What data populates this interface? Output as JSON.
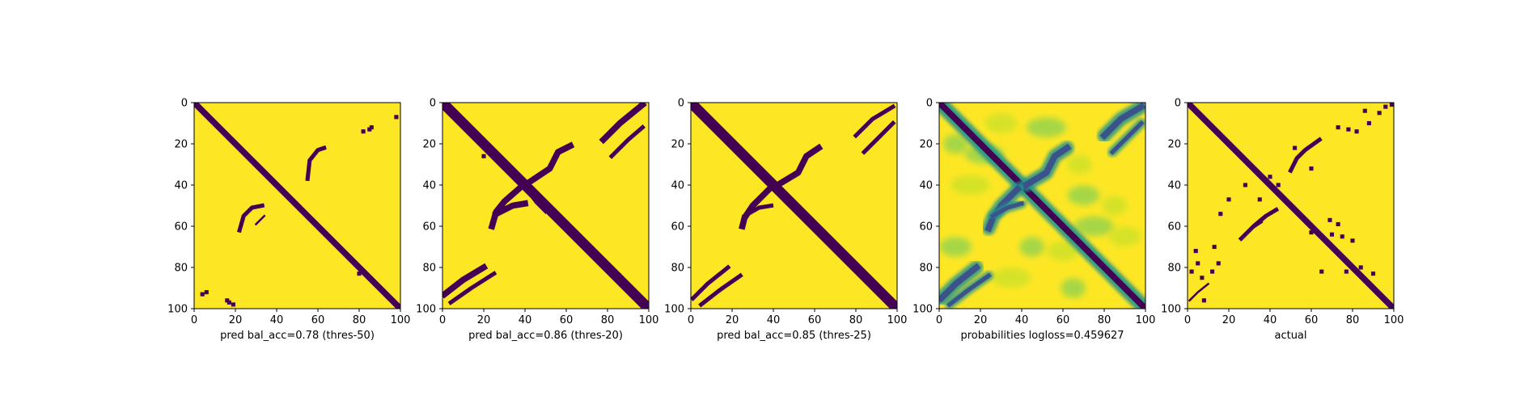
{
  "colors": {
    "background": "#fde725",
    "contact": "#440154",
    "mid_teal": "#21918c",
    "mid_blue": "#3b528b",
    "light_green": "#b5de2b",
    "mid_green": "#5ec962"
  },
  "chart_data": [
    {
      "type": "heatmap",
      "title": "pred bal_acc=0.78 (thres-50)",
      "xlim": [
        0,
        100
      ],
      "ylim": [
        100,
        0
      ],
      "xticks": [
        0,
        20,
        40,
        60,
        80,
        100
      ],
      "yticks": [
        0,
        20,
        40,
        60,
        80,
        100
      ],
      "grid": false,
      "colormap": "viridis",
      "value_kind": "binary",
      "features": {
        "diagonal_width": 3,
        "arcs": [
          {
            "points": [
              [
                55,
                37
              ],
              [
                56,
                28
              ],
              [
                60,
                23
              ],
              [
                63,
                22
              ]
            ],
            "width": 2
          },
          {
            "points": [
              [
                22,
                62
              ],
              [
                24,
                55
              ],
              [
                28,
                51
              ],
              [
                33,
                50
              ]
            ],
            "width": 2
          },
          {
            "points": [
              [
                30,
                59
              ],
              [
                34,
                55
              ]
            ],
            "width": 1
          }
        ],
        "blobs": [
          [
            82,
            14
          ],
          [
            85,
            13
          ],
          [
            98,
            7
          ],
          [
            86,
            12
          ],
          [
            80,
            83
          ],
          [
            82,
            82
          ],
          [
            17,
            97
          ],
          [
            16,
            96
          ],
          [
            19,
            98
          ],
          [
            88,
            88
          ],
          [
            4,
            93
          ],
          [
            6,
            92
          ]
        ],
        "blob_size": 2
      }
    },
    {
      "type": "heatmap",
      "title": "pred bal_acc=0.86 (thres-20)",
      "xlim": [
        0,
        100
      ],
      "ylim": [
        100,
        0
      ],
      "xticks": [
        0,
        20,
        40,
        60,
        80,
        100
      ],
      "yticks": [
        0,
        20,
        40,
        60,
        80,
        100
      ],
      "grid": false,
      "colormap": "viridis",
      "value_kind": "binary",
      "features": {
        "diagonal_width": 5,
        "arcs": [
          {
            "points": [
              [
                40,
                40
              ],
              [
                52,
                32
              ],
              [
                56,
                24
              ],
              [
                62,
                21
              ]
            ],
            "width": 3
          },
          {
            "points": [
              [
                38,
                41
              ],
              [
                30,
                48
              ],
              [
                26,
                53
              ],
              [
                24,
                60
              ]
            ],
            "width": 3
          },
          {
            "points": [
              [
                26,
                54
              ],
              [
                34,
                50
              ],
              [
                40,
                49
              ]
            ],
            "width": 3
          },
          {
            "points": [
              [
                40,
                40
              ],
              [
                46,
                48
              ],
              [
                50,
                52
              ]
            ],
            "width": 3
          },
          {
            "points": [
              [
                78,
                18
              ],
              [
                86,
                10
              ],
              [
                97,
                1
              ]
            ],
            "width": 3
          },
          {
            "points": [
              [
                82,
                26
              ],
              [
                90,
                18
              ],
              [
                97,
                12
              ]
            ],
            "width": 2
          },
          {
            "points": [
              [
                1,
                93
              ],
              [
                10,
                86
              ],
              [
                20,
                80
              ]
            ],
            "width": 3
          },
          {
            "points": [
              [
                4,
                97
              ],
              [
                14,
                90
              ],
              [
                25,
                83
              ]
            ],
            "width": 2
          },
          {
            "points": [
              [
                86,
                84
              ],
              [
                94,
                94
              ],
              [
                99,
                99
              ]
            ],
            "width": 2
          }
        ],
        "blobs": [
          [
            20,
            26
          ],
          [
            60,
            60
          ],
          [
            79,
            80
          ]
        ],
        "blob_size": 2
      }
    },
    {
      "type": "heatmap",
      "title": "pred bal_acc=0.85 (thres-25)",
      "xlim": [
        0,
        100
      ],
      "ylim": [
        100,
        0
      ],
      "xticks": [
        0,
        20,
        40,
        60,
        80,
        100
      ],
      "yticks": [
        0,
        20,
        40,
        60,
        80,
        100
      ],
      "grid": false,
      "colormap": "viridis",
      "value_kind": "binary",
      "features": {
        "diagonal_width": 5,
        "arcs": [
          {
            "points": [
              [
                42,
                40
              ],
              [
                52,
                34
              ],
              [
                56,
                26
              ],
              [
                62,
                22
              ]
            ],
            "width": 3
          },
          {
            "points": [
              [
                38,
                42
              ],
              [
                30,
                50
              ],
              [
                26,
                56
              ],
              [
                25,
                60
              ]
            ],
            "width": 3
          },
          {
            "points": [
              [
                26,
                55
              ],
              [
                33,
                51
              ],
              [
                39,
                50
              ]
            ],
            "width": 2
          },
          {
            "points": [
              [
                80,
                16
              ],
              [
                88,
                8
              ],
              [
                98,
                2
              ]
            ],
            "width": 2
          },
          {
            "points": [
              [
                84,
                24
              ],
              [
                92,
                16
              ],
              [
                98,
                10
              ]
            ],
            "width": 2
          },
          {
            "points": [
              [
                1,
                95
              ],
              [
                8,
                88
              ],
              [
                18,
                80
              ]
            ],
            "width": 2
          },
          {
            "points": [
              [
                5,
                98
              ],
              [
                14,
                91
              ],
              [
                24,
                84
              ]
            ],
            "width": 2
          }
        ],
        "blobs": [
          [
            60,
            60
          ],
          [
            80,
            80
          ]
        ],
        "blob_size": 2
      }
    },
    {
      "type": "heatmap",
      "title": "probabilities logloss=0.459627",
      "xlim": [
        0,
        100
      ],
      "ylim": [
        100,
        0
      ],
      "xticks": [
        0,
        20,
        40,
        60,
        80,
        100
      ],
      "yticks": [
        0,
        20,
        40,
        60,
        80,
        100
      ],
      "grid": false,
      "colormap": "viridis",
      "value_kind": "continuous",
      "features": {
        "diagonal_width": 3,
        "arcs": [
          {
            "points": [
              [
                42,
                40
              ],
              [
                52,
                34
              ],
              [
                56,
                26
              ],
              [
                62,
                22
              ]
            ],
            "width": 3
          },
          {
            "points": [
              [
                38,
                42
              ],
              [
                30,
                50
              ],
              [
                26,
                56
              ],
              [
                24,
                61
              ]
            ],
            "width": 3
          },
          {
            "points": [
              [
                26,
                55
              ],
              [
                33,
                51
              ],
              [
                40,
                49
              ]
            ],
            "width": 2
          },
          {
            "points": [
              [
                80,
                16
              ],
              [
                88,
                8
              ],
              [
                98,
                2
              ]
            ],
            "width": 3
          },
          {
            "points": [
              [
                84,
                24
              ],
              [
                92,
                16
              ],
              [
                98,
                10
              ]
            ],
            "width": 2
          },
          {
            "points": [
              [
                1,
                95
              ],
              [
                8,
                88
              ],
              [
                18,
                80
              ]
            ],
            "width": 3
          },
          {
            "points": [
              [
                5,
                98
              ],
              [
                14,
                91
              ],
              [
                24,
                84
              ]
            ],
            "width": 2
          }
        ],
        "blobs": [
          [
            8,
            20
          ],
          [
            30,
            10
          ],
          [
            52,
            12
          ],
          [
            68,
            30
          ],
          [
            70,
            45
          ],
          [
            15,
            40
          ],
          [
            45,
            70
          ],
          [
            60,
            72
          ],
          [
            75,
            60
          ],
          [
            85,
            50
          ],
          [
            8,
            70
          ],
          [
            35,
            85
          ],
          [
            65,
            90
          ],
          [
            90,
            65
          ],
          [
            22,
            25
          ]
        ],
        "blob_size": 6
      }
    },
    {
      "type": "heatmap",
      "title": "actual",
      "xlim": [
        0,
        100
      ],
      "ylim": [
        100,
        0
      ],
      "xticks": [
        0,
        20,
        40,
        60,
        80,
        100
      ],
      "yticks": [
        0,
        20,
        40,
        60,
        80,
        100
      ],
      "grid": false,
      "colormap": "viridis",
      "value_kind": "binary",
      "features": {
        "diagonal_width": 3,
        "arcs": [
          {
            "points": [
              [
                50,
                33
              ],
              [
                53,
                27
              ],
              [
                57,
                23
              ],
              [
                64,
                18
              ]
            ],
            "width": 2
          },
          {
            "points": [
              [
                26,
                66
              ],
              [
                32,
                60
              ],
              [
                38,
                55
              ],
              [
                43,
                52
              ]
            ],
            "width": 2
          },
          {
            "points": [
              [
                30,
                62
              ],
              [
                36,
                58
              ]
            ],
            "width": 1
          },
          {
            "points": [
              [
                1,
                96
              ],
              [
                5,
                92
              ],
              [
                10,
                88
              ]
            ],
            "width": 1
          }
        ],
        "blobs": [
          [
            73,
            12
          ],
          [
            78,
            13
          ],
          [
            82,
            14
          ],
          [
            88,
            10
          ],
          [
            93,
            5
          ],
          [
            96,
            2
          ],
          [
            99,
            1
          ],
          [
            86,
            4
          ],
          [
            60,
            32
          ],
          [
            52,
            22
          ],
          [
            28,
            40
          ],
          [
            20,
            47
          ],
          [
            16,
            54
          ],
          [
            13,
            70
          ],
          [
            15,
            78
          ],
          [
            12,
            82
          ],
          [
            5,
            78
          ],
          [
            4,
            72
          ],
          [
            7,
            85
          ],
          [
            40,
            36
          ],
          [
            44,
            40
          ],
          [
            35,
            47
          ],
          [
            70,
            64
          ],
          [
            75,
            65
          ],
          [
            80,
            67
          ],
          [
            84,
            80
          ],
          [
            90,
            83
          ],
          [
            65,
            82
          ],
          [
            69,
            57
          ],
          [
            73,
            59
          ],
          [
            60,
            63
          ],
          [
            77,
            82
          ],
          [
            2,
            82
          ],
          [
            8,
            96
          ]
        ],
        "blob_size": 2
      }
    }
  ]
}
